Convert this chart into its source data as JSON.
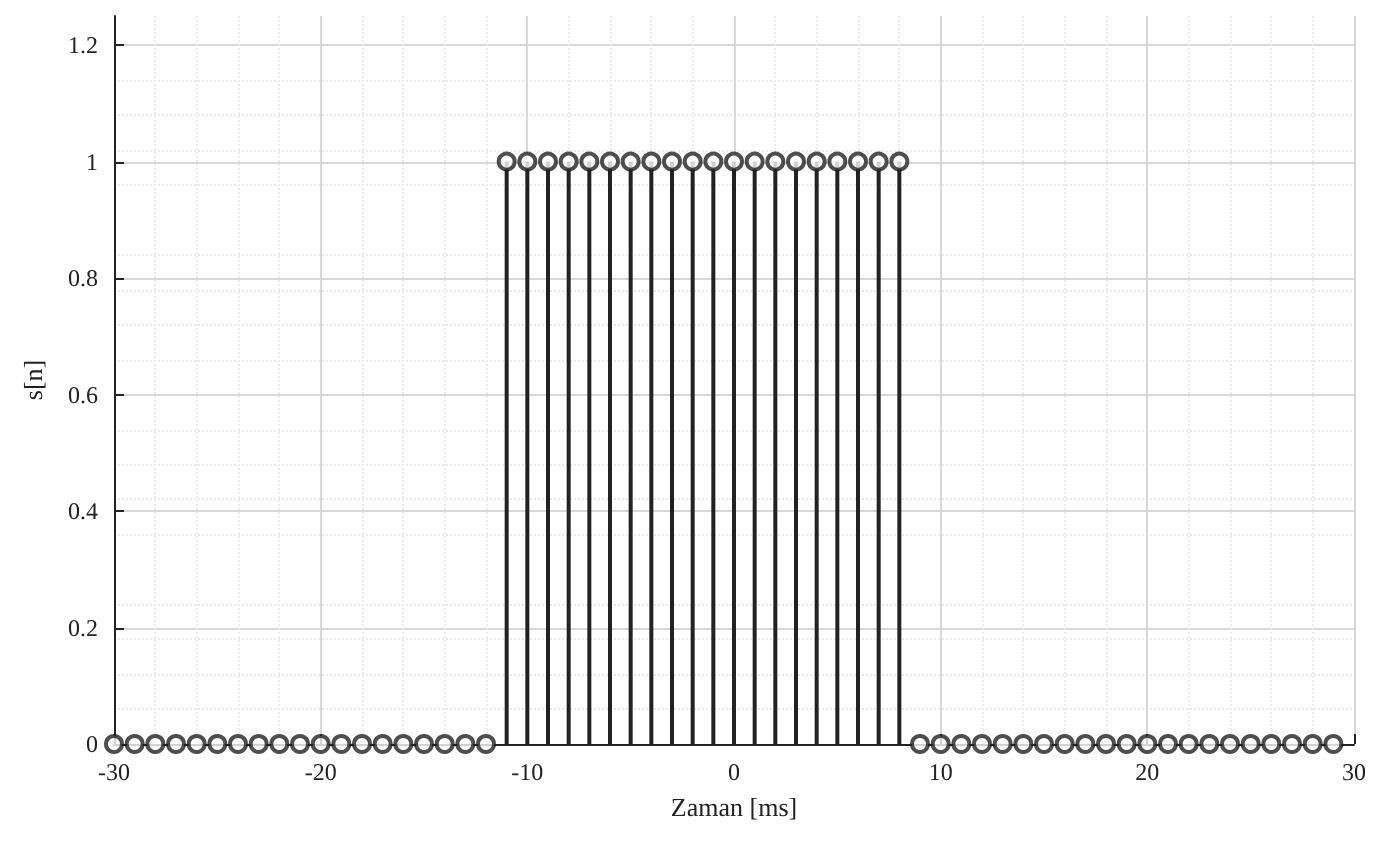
{
  "chart_data": {
    "type": "lollipop",
    "xlabel": "Zaman [ms]",
    "ylabel": "s[n]",
    "x": [
      -30,
      -29,
      -28,
      -27,
      -26,
      -25,
      -24,
      -23,
      -22,
      -21,
      -20,
      -19,
      -18,
      -17,
      -16,
      -15,
      -14,
      -13,
      -12,
      -11,
      -10,
      -9,
      -8,
      -7,
      -6,
      -5,
      -4,
      -3,
      -2,
      -1,
      0,
      1,
      2,
      3,
      4,
      5,
      6,
      7,
      8,
      9,
      10,
      11,
      12,
      13,
      14,
      15,
      16,
      17,
      18,
      19,
      20,
      21,
      22,
      23,
      24,
      25,
      26,
      27,
      28,
      29
    ],
    "values": [
      0,
      0,
      0,
      0,
      0,
      0,
      0,
      0,
      0,
      0,
      0,
      0,
      0,
      0,
      0,
      0,
      0,
      0,
      0,
      1,
      1,
      1,
      1,
      1,
      1,
      1,
      1,
      1,
      1,
      1,
      1,
      1,
      1,
      1,
      1,
      1,
      1,
      1,
      1,
      0,
      0,
      0,
      0,
      0,
      0,
      0,
      0,
      0,
      0,
      0,
      0,
      0,
      0,
      0,
      0,
      0,
      0,
      0,
      0,
      0
    ],
    "color": "#222222",
    "marker": "circle",
    "grid": true,
    "xlim": [
      -30,
      30
    ],
    "xticks": [
      -30,
      -20,
      -10,
      0,
      10,
      20,
      30
    ],
    "ylim": [
      0,
      1.25
    ],
    "yticks": [
      0,
      0.2,
      0.4,
      0.6,
      0.8,
      1,
      1.2
    ]
  }
}
